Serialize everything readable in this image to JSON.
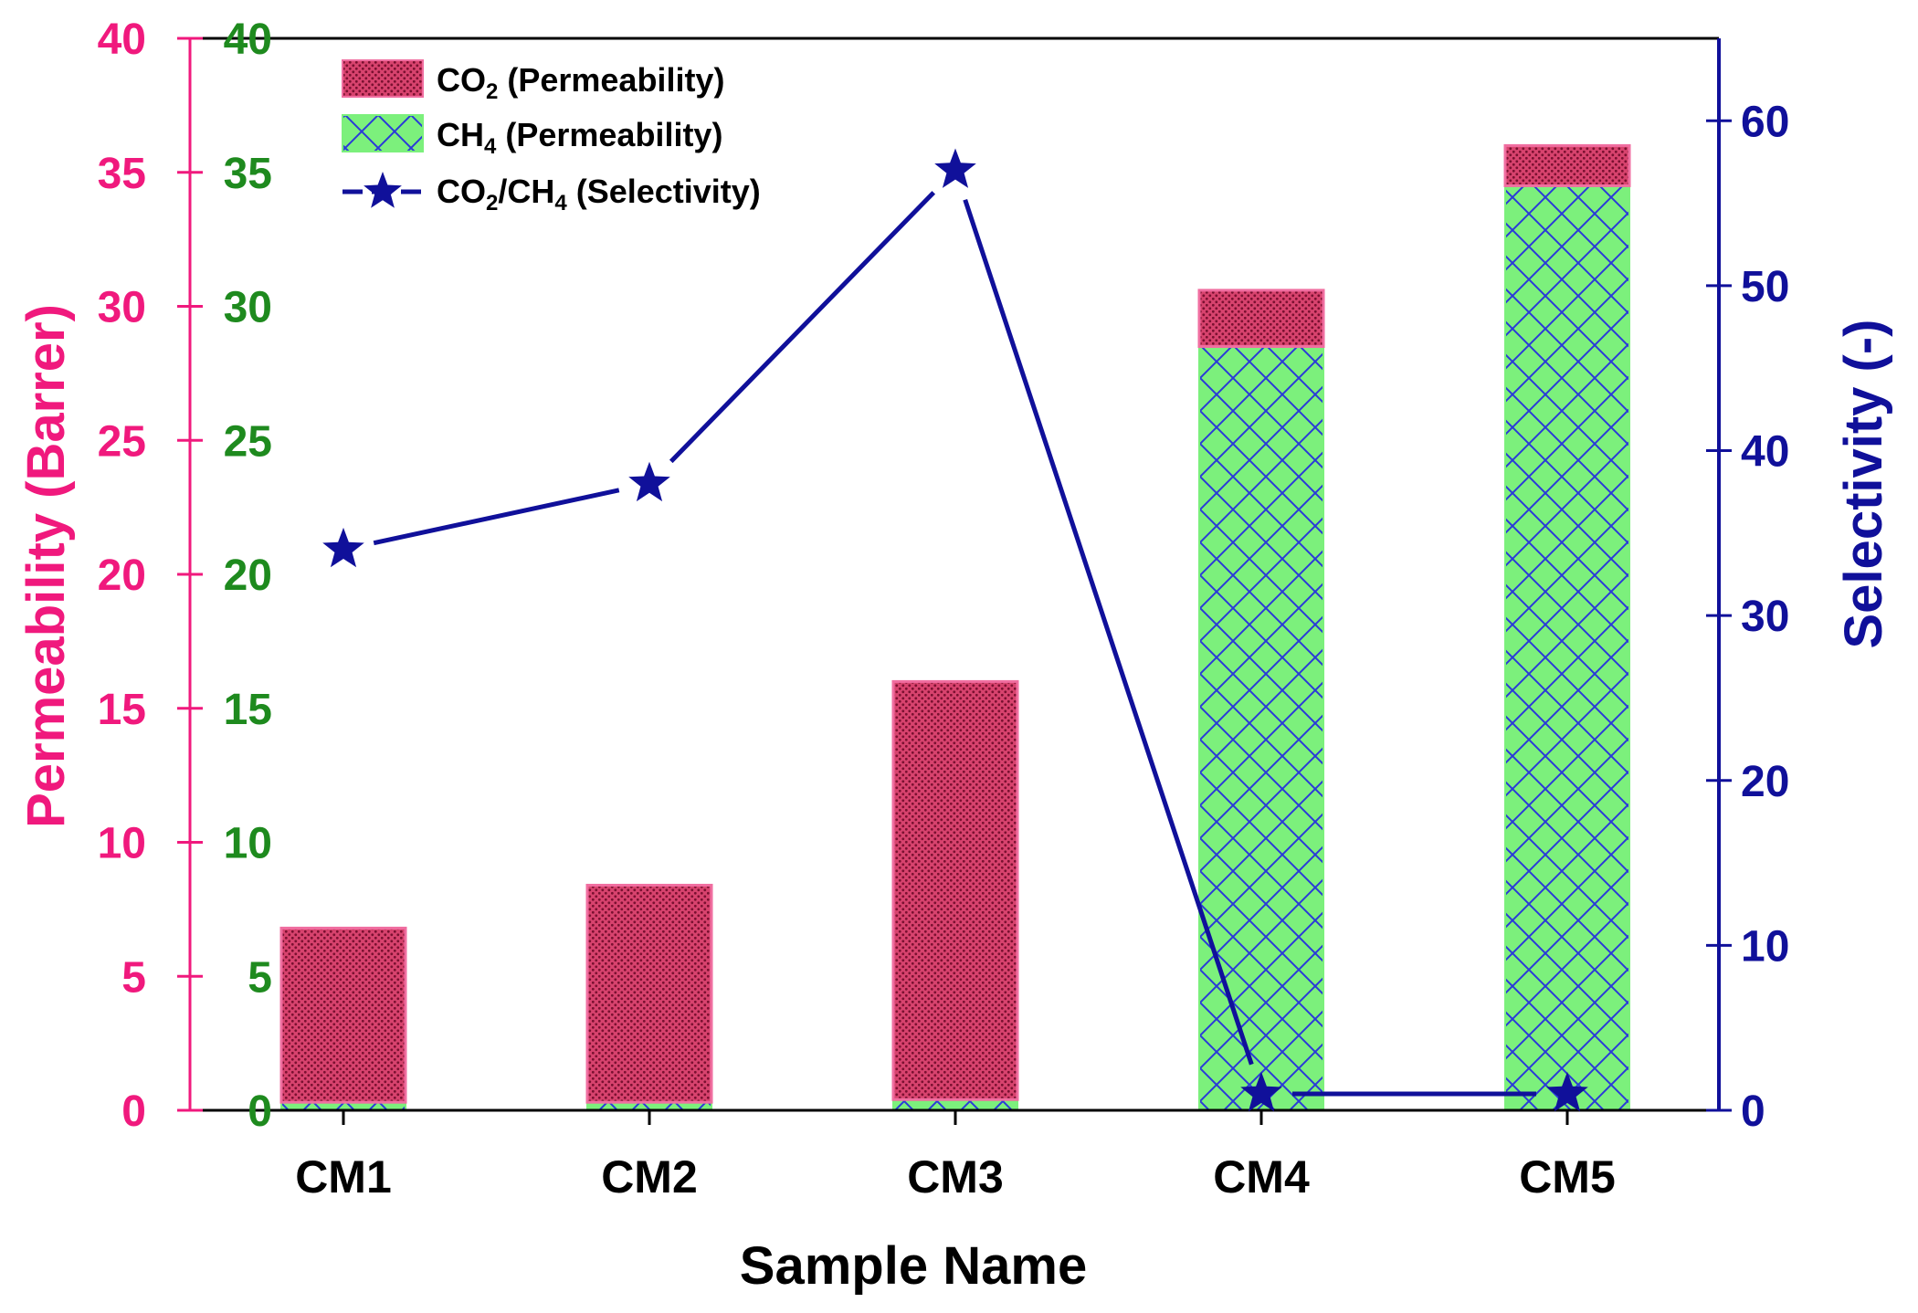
{
  "chart_data": {
    "type": "bar",
    "stacked": true,
    "categories": [
      "CM1",
      "CM2",
      "CM3",
      "CM4",
      "CM5"
    ],
    "series": [
      {
        "name": "CH4 (Permeability)",
        "kind": "bar",
        "axis": "left",
        "values": [
          0.3,
          0.3,
          0.4,
          28.5,
          34.5
        ],
        "fill": "#7cf07c",
        "hatch": "#2a3ad8"
      },
      {
        "name": "CO2 (Permeability)",
        "kind": "bar",
        "axis": "left",
        "values": [
          6.5,
          8.1,
          15.6,
          2.1,
          1.5
        ],
        "fill": "#d8436e",
        "hatch": "#7a1030"
      },
      {
        "name": "CO2/CH4 (Selectivity)",
        "kind": "line",
        "axis": "right",
        "values": [
          34,
          38,
          57,
          1,
          1
        ],
        "color": "#10109a"
      }
    ],
    "legend": [
      {
        "id": "co2",
        "main": "CO",
        "sub": "2",
        "rest": " (Permeability)"
      },
      {
        "id": "ch4",
        "main": "CH",
        "sub": "4",
        "rest": " (Permeability)"
      },
      {
        "id": "sel",
        "parts": [
          [
            "CO",
            false
          ],
          [
            "2",
            true
          ],
          [
            "/CH",
            false
          ],
          [
            "4",
            true
          ],
          [
            " (Selectivity)",
            false
          ]
        ]
      }
    ],
    "legend_position": "top-left",
    "xlabel": "Sample Name",
    "ylabel": "Permeability (Barrer)",
    "y2label": "Selectivity (-)",
    "ylim": [
      0,
      40
    ],
    "y2lim": [
      0,
      65
    ],
    "yticks": [
      0,
      5,
      10,
      15,
      20,
      25,
      30,
      35,
      40
    ],
    "y2ticks": [
      0,
      10,
      20,
      30,
      40,
      50,
      60
    ],
    "colors": {
      "left_axis": "#f0197d",
      "inner_axis": "#1e8a1e",
      "right_axis": "#10109a",
      "frame": "#000000"
    }
  }
}
